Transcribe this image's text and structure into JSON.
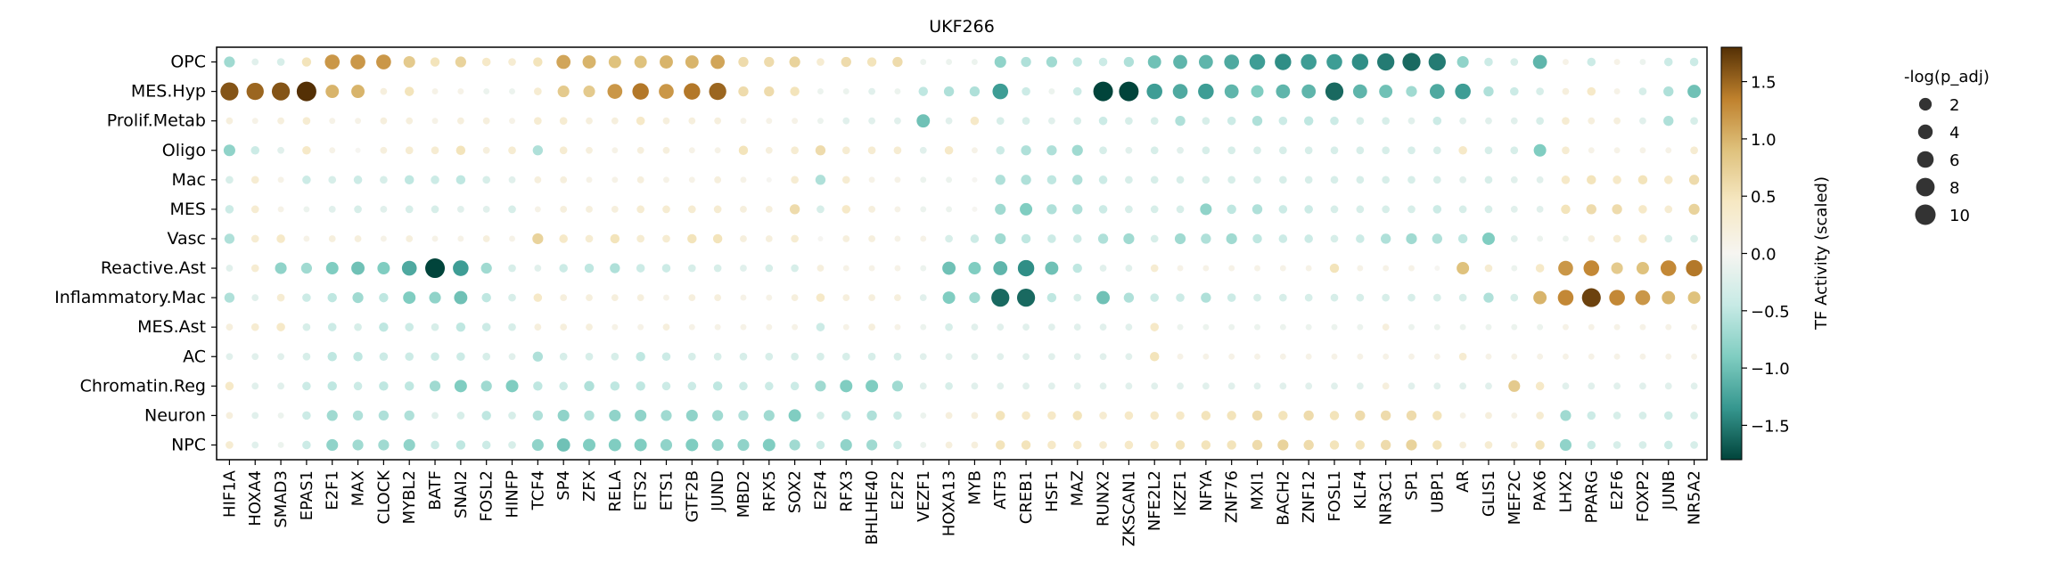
{
  "chart_data": {
    "type": "dot-heatmap",
    "title": "UKF266",
    "rows": [
      "OPC",
      "MES.Hyp",
      "Prolif.Metab",
      "Oligo",
      "Mac",
      "MES",
      "Vasc",
      "Reactive.Ast",
      "Inflammatory.Mac",
      "MES.Ast",
      "AC",
      "Chromatin.Reg",
      "Neuron",
      "NPC"
    ],
    "columns": [
      "HIF1A",
      "HOXA4",
      "SMAD3",
      "EPAS1",
      "E2F1",
      "MAX",
      "CLOCK",
      "MYBL2",
      "BATF",
      "SNAI2",
      "FOSL2",
      "HINFP",
      "TCF4",
      "SP4",
      "ZFX",
      "RELA",
      "ETS2",
      "ETS1",
      "GTF2B",
      "JUND",
      "MBD2",
      "RFX5",
      "SOX2",
      "E2F4",
      "RFX3",
      "BHLHE40",
      "E2F2",
      "VEZF1",
      "HOXA13",
      "MYB",
      "ATF3",
      "CREB1",
      "HSF1",
      "MAZ",
      "RUNX2",
      "ZKSCAN1",
      "NFE2L2",
      "IKZF1",
      "NFYA",
      "ZNF76",
      "MXI1",
      "BACH2",
      "ZNF12",
      "FOSL1",
      "KLF4",
      "NR3C1",
      "SP1",
      "UBP1",
      "AR",
      "GLIS1",
      "MEF2C",
      "PAX6",
      "LHX2",
      "PPARG",
      "E2F6",
      "FOXP2",
      "JUNB",
      "NR5A2"
    ],
    "activity": [
      [
        -0.7,
        -0.2,
        -0.3,
        0.5,
        1.2,
        1.2,
        1.2,
        0.8,
        0.5,
        0.7,
        0.4,
        0.3,
        0.5,
        1.1,
        1.0,
        0.9,
        0.9,
        1.0,
        1.0,
        1.1,
        0.6,
        0.6,
        0.7,
        0.3,
        0.6,
        0.5,
        0.6,
        -0.1,
        -0.1,
        -0.1,
        -0.8,
        -0.6,
        -0.7,
        -0.5,
        -0.4,
        -0.6,
        -1.0,
        -1.1,
        -1.1,
        -1.2,
        -1.3,
        -1.4,
        -1.3,
        -1.3,
        -1.4,
        -1.5,
        -1.6,
        -1.5,
        -0.8,
        -0.4,
        -0.3,
        -1.1,
        0.1,
        -0.4,
        0.1,
        -0.1,
        -0.4,
        -0.4
      ],
      [
        1.6,
        1.5,
        1.6,
        1.8,
        1.0,
        1.0,
        0.2,
        0.5,
        0.1,
        0.1,
        -0.1,
        -0.1,
        0.3,
        0.8,
        0.8,
        1.2,
        1.4,
        1.2,
        1.4,
        1.5,
        0.6,
        0.6,
        0.5,
        -0.1,
        -0.1,
        -0.2,
        -0.1,
        -0.5,
        -0.6,
        -0.6,
        -1.3,
        -0.4,
        -0.1,
        -0.4,
        -1.8,
        -1.8,
        -1.3,
        -1.2,
        -1.3,
        -1.1,
        -0.9,
        -1.1,
        -1.1,
        -1.6,
        -1.1,
        -1.0,
        -0.7,
        -1.2,
        -1.3,
        -0.6,
        -0.4,
        -0.3,
        0.2,
        0.4,
        0.1,
        -0.3,
        -0.6,
        -1.0
      ],
      [
        0.2,
        0.1,
        0.2,
        0.3,
        0.1,
        0.1,
        0.2,
        0.2,
        0.1,
        0.2,
        0.2,
        0.1,
        0.3,
        0.3,
        0.2,
        0.2,
        0.4,
        0.2,
        0.2,
        0.2,
        0.1,
        0.1,
        0.1,
        -0.1,
        -0.2,
        -0.2,
        -0.2,
        -1.0,
        -0.2,
        0.4,
        -0.3,
        -0.3,
        -0.2,
        -0.3,
        -0.4,
        -0.3,
        -0.3,
        -0.6,
        -0.3,
        -0.4,
        -0.6,
        -0.4,
        -0.5,
        -0.4,
        -0.3,
        -0.3,
        -0.2,
        -0.4,
        -0.2,
        -0.2,
        -0.2,
        -0.3,
        0.3,
        0.2,
        0.2,
        -0.2,
        -0.6,
        -0.3
      ],
      [
        -0.8,
        -0.4,
        -0.2,
        0.4,
        0.1,
        0.0,
        0.2,
        0.3,
        0.3,
        0.5,
        0.2,
        0.3,
        -0.6,
        0.3,
        0.2,
        0.1,
        0.2,
        0.2,
        0.1,
        0.1,
        0.5,
        0.2,
        0.3,
        0.6,
        0.3,
        0.3,
        0.3,
        -0.2,
        0.4,
        0.1,
        -0.4,
        -0.6,
        -0.6,
        -0.7,
        -0.3,
        -0.2,
        -0.3,
        -0.2,
        -0.3,
        -0.3,
        -0.3,
        -0.3,
        -0.3,
        -0.3,
        -0.3,
        -0.3,
        -0.3,
        -0.3,
        0.4,
        -0.3,
        -0.3,
        -0.9,
        0.3,
        0.1,
        0.1,
        0.1,
        0.1,
        0.3
      ],
      [
        -0.3,
        0.3,
        0.1,
        -0.4,
        -0.3,
        -0.4,
        -0.3,
        -0.5,
        -0.4,
        -0.5,
        -0.3,
        -0.2,
        0.2,
        0.2,
        0.1,
        0.1,
        0.2,
        0.1,
        0.1,
        0.2,
        0.1,
        0.0,
        0.3,
        -0.6,
        0.3,
        0.1,
        0.1,
        -0.1,
        -0.1,
        0.0,
        -0.6,
        -0.6,
        -0.5,
        -0.6,
        -0.4,
        -0.3,
        -0.3,
        -0.3,
        -0.3,
        -0.3,
        -0.3,
        -0.3,
        -0.3,
        -0.3,
        -0.3,
        -0.3,
        -0.3,
        -0.3,
        -0.2,
        -0.3,
        -0.2,
        -0.2,
        0.4,
        0.5,
        0.4,
        0.5,
        0.4,
        0.6
      ],
      [
        -0.4,
        0.3,
        0.1,
        -0.1,
        -0.2,
        -0.3,
        -0.2,
        -0.3,
        -0.3,
        -0.2,
        -0.2,
        -0.3,
        0.1,
        0.2,
        0.2,
        0.2,
        0.3,
        0.3,
        0.3,
        0.3,
        0.2,
        0.2,
        0.6,
        -0.3,
        0.4,
        0.2,
        0.1,
        -0.1,
        -0.1,
        0.0,
        -0.7,
        -0.9,
        -0.6,
        -0.6,
        -0.4,
        -0.3,
        -0.3,
        -0.3,
        -0.8,
        -0.5,
        -0.6,
        -0.4,
        -0.4,
        -0.3,
        -0.3,
        -0.3,
        -0.3,
        -0.4,
        -0.3,
        -0.3,
        -0.2,
        -0.2,
        0.5,
        0.6,
        0.6,
        0.4,
        0.3,
        0.7
      ],
      [
        -0.6,
        0.3,
        0.4,
        0.1,
        0.2,
        0.2,
        0.1,
        0.2,
        0.1,
        0.1,
        0.2,
        0.1,
        0.7,
        0.4,
        0.3,
        0.5,
        0.3,
        0.3,
        0.5,
        0.5,
        0.2,
        0.2,
        0.3,
        0.0,
        0.2,
        0.2,
        0.1,
        0.1,
        -0.3,
        -0.4,
        -0.7,
        -0.5,
        -0.4,
        -0.4,
        -0.6,
        -0.7,
        -0.3,
        -0.7,
        -0.6,
        -0.7,
        -0.5,
        -0.4,
        -0.4,
        -0.3,
        -0.4,
        -0.6,
        -0.7,
        -0.6,
        -0.5,
        -0.9,
        -0.2,
        -0.1,
        -0.1,
        0.2,
        0.3,
        0.4,
        -0.3,
        -0.3
      ],
      [
        -0.2,
        0.3,
        -0.8,
        -0.7,
        -0.9,
        -1.0,
        -0.9,
        -1.2,
        -1.8,
        -1.3,
        -0.7,
        -0.3,
        -0.2,
        -0.4,
        -0.5,
        -0.6,
        -0.4,
        -0.4,
        -0.3,
        -0.3,
        -0.2,
        -0.3,
        -0.3,
        0.2,
        0.1,
        0.1,
        0.1,
        -0.1,
        -1.0,
        -0.9,
        -1.1,
        -1.4,
        -1.0,
        -0.5,
        -0.2,
        -0.2,
        0.3,
        0.1,
        0.1,
        0.1,
        0.1,
        0.1,
        0.1,
        0.5,
        0.1,
        0.1,
        0.1,
        0.0,
        0.9,
        0.3,
        -0.1,
        0.4,
        1.2,
        1.3,
        0.8,
        0.9,
        1.3,
        1.4
      ],
      [
        -0.6,
        -0.2,
        0.3,
        -0.4,
        -0.5,
        -0.7,
        -0.5,
        -0.9,
        -0.8,
        -1.0,
        -0.5,
        -0.3,
        0.4,
        0.2,
        0.2,
        0.2,
        0.2,
        0.1,
        0.2,
        0.2,
        0.1,
        0.1,
        0.2,
        0.4,
        0.2,
        0.2,
        0.2,
        -0.2,
        -0.9,
        -0.7,
        -1.6,
        -1.6,
        -0.5,
        -0.3,
        -1.0,
        -0.6,
        -0.4,
        -0.4,
        -0.6,
        -0.4,
        -0.3,
        -0.3,
        -0.3,
        -0.3,
        -0.3,
        -0.3,
        -0.3,
        -0.3,
        -0.3,
        -0.6,
        -0.3,
        1.0,
        1.3,
        1.7,
        1.3,
        1.2,
        1.0,
        0.9
      ],
      [
        0.2,
        0.3,
        0.4,
        -0.3,
        -0.4,
        -0.3,
        -0.5,
        -0.4,
        -0.3,
        -0.5,
        -0.4,
        -0.3,
        0.2,
        0.2,
        0.2,
        0.1,
        0.1,
        0.2,
        0.1,
        0.1,
        0.1,
        0.1,
        0.1,
        -0.4,
        0.1,
        0.2,
        0.1,
        -0.1,
        -0.3,
        -0.2,
        -0.2,
        -0.2,
        -0.2,
        -0.2,
        -0.2,
        -0.2,
        0.4,
        -0.1,
        -0.1,
        -0.1,
        -0.1,
        -0.1,
        -0.1,
        -0.1,
        -0.1,
        0.2,
        -0.1,
        -0.1,
        -0.1,
        -0.1,
        -0.1,
        -0.1,
        0.1,
        0.1,
        0.1,
        0.1,
        0.1,
        0.1
      ],
      [
        -0.2,
        -0.2,
        -0.2,
        -0.3,
        -0.5,
        -0.5,
        -0.4,
        -0.4,
        -0.4,
        -0.4,
        -0.3,
        -0.2,
        -0.6,
        -0.3,
        -0.3,
        -0.3,
        -0.5,
        -0.4,
        -0.3,
        -0.3,
        -0.3,
        -0.3,
        -0.3,
        -0.3,
        -0.3,
        -0.3,
        -0.3,
        -0.2,
        -0.2,
        -0.2,
        -0.2,
        -0.2,
        -0.2,
        -0.2,
        -0.2,
        -0.2,
        0.5,
        0.1,
        0.1,
        0.1,
        0.1,
        0.1,
        0.1,
        0.1,
        0.1,
        0.1,
        0.1,
        0.1,
        0.3,
        0.1,
        0.1,
        0.1,
        0.1,
        0.1,
        0.1,
        0.1,
        0.1,
        0.1
      ],
      [
        0.4,
        -0.2,
        -0.2,
        -0.4,
        -0.5,
        -0.4,
        -0.5,
        -0.5,
        -0.7,
        -0.9,
        -0.7,
        -0.9,
        -0.5,
        -0.4,
        -0.6,
        -0.5,
        -0.5,
        -0.4,
        -0.4,
        -0.5,
        -0.4,
        -0.4,
        -0.4,
        -0.7,
        -0.9,
        -0.9,
        -0.7,
        -0.2,
        -0.3,
        -0.2,
        -0.2,
        -0.2,
        -0.2,
        -0.2,
        -0.2,
        -0.2,
        -0.2,
        -0.2,
        -0.2,
        -0.2,
        -0.2,
        -0.2,
        -0.2,
        -0.2,
        -0.2,
        0.2,
        -0.2,
        -0.2,
        -0.2,
        -0.2,
        0.8,
        0.4,
        -0.2,
        -0.2,
        -0.2,
        -0.2,
        -0.2,
        -0.2
      ],
      [
        0.2,
        -0.2,
        -0.1,
        -0.4,
        -0.7,
        -0.6,
        -0.6,
        -0.6,
        -0.2,
        -0.3,
        -0.5,
        -0.3,
        -0.6,
        -0.8,
        -0.6,
        -0.8,
        -0.8,
        -0.7,
        -0.8,
        -0.7,
        -0.6,
        -0.7,
        -0.9,
        -0.3,
        -0.5,
        -0.6,
        -0.4,
        -0.1,
        0.2,
        0.2,
        0.5,
        0.4,
        0.4,
        0.5,
        0.3,
        0.4,
        0.4,
        0.4,
        0.5,
        0.5,
        0.6,
        0.5,
        0.6,
        0.5,
        0.6,
        0.6,
        0.6,
        0.5,
        0.1,
        0.2,
        0.1,
        0.3,
        -0.7,
        -0.4,
        -0.3,
        -0.3,
        -0.4,
        -0.3
      ],
      [
        0.3,
        -0.2,
        -0.1,
        -0.4,
        -0.8,
        -0.7,
        -0.7,
        -0.8,
        -0.4,
        -0.5,
        -0.4,
        -0.3,
        -0.8,
        -1.0,
        -0.9,
        -0.9,
        -0.9,
        -0.8,
        -0.9,
        -0.8,
        -0.8,
        -0.9,
        -0.7,
        -0.4,
        -0.8,
        -0.7,
        -0.4,
        -0.1,
        0.2,
        0.2,
        0.5,
        0.5,
        0.4,
        0.4,
        0.3,
        0.4,
        0.4,
        0.5,
        0.5,
        0.5,
        0.6,
        0.7,
        0.6,
        0.5,
        0.5,
        0.6,
        0.7,
        0.5,
        0.2,
        0.3,
        0.2,
        0.5,
        -0.8,
        -0.4,
        -0.3,
        -0.3,
        -0.4,
        -0.3
      ]
    ],
    "colorbar": {
      "label": "TF Activity (scaled)",
      "range": [
        -1.8,
        1.8
      ],
      "ticks": [
        -1.5,
        -1.0,
        -0.5,
        0.0,
        0.5,
        1.0,
        1.5
      ],
      "tick_labels": [
        "−1.5",
        "−1.0",
        "−0.5",
        "0.0",
        "0.5",
        "1.0",
        "1.5"
      ],
      "colors": [
        "#01443b",
        "#36978f",
        "#80cdc1",
        "#c7eae5",
        "#f6f5f1",
        "#f6e8c3",
        "#dfc27d",
        "#bf812d",
        "#543005"
      ]
    },
    "size_legend": {
      "title": "-log(p_adj)",
      "values": [
        2,
        4,
        6,
        8,
        10
      ],
      "labels": [
        "2",
        "4",
        "6",
        "8",
        "10"
      ]
    }
  }
}
